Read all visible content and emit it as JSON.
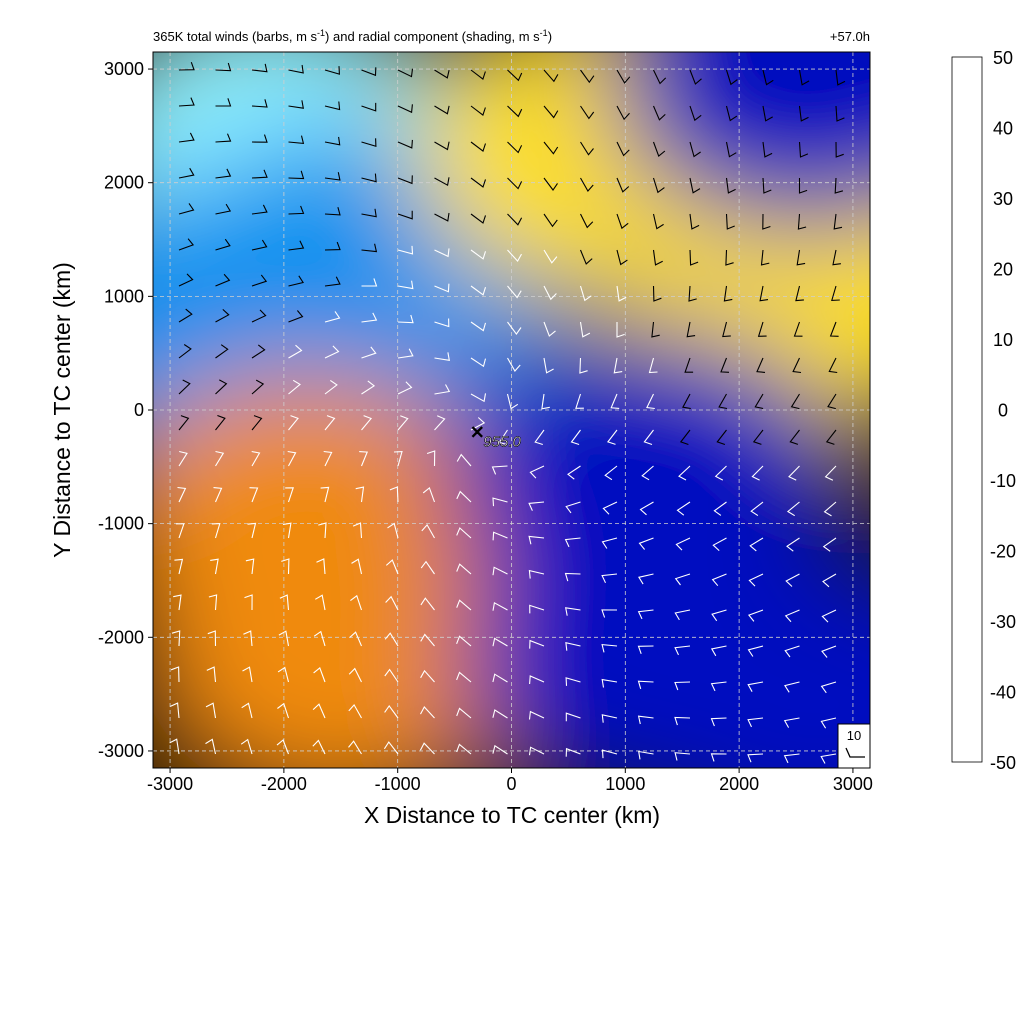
{
  "chart_data": {
    "type": "heatmap",
    "title_left": "365K total winds (barbs, m s",
    "title_unit_sup": "-1",
    "title_mid": ") and radial component (shading, m s",
    "title_end": ")",
    "title_right": "+57.0h",
    "xlabel": "X Distance to TC center (km)",
    "ylabel": "Y Distance to TC center (km)",
    "xlim": [
      -3150,
      3150
    ],
    "ylim": [
      -3150,
      3150
    ],
    "xticks": [
      -3000,
      -2000,
      -1000,
      0,
      1000,
      2000,
      3000
    ],
    "yticks": [
      -3000,
      -2000,
      -1000,
      0,
      1000,
      2000,
      3000
    ],
    "grid": true,
    "center_marker": {
      "x": -300,
      "y": -200,
      "label": "955.0"
    },
    "reference_barb": {
      "label": "10"
    },
    "colorbar": {
      "ticks": [
        50,
        40,
        30,
        20,
        10,
        0,
        -10,
        -20,
        -30,
        -40,
        -50
      ],
      "range": [
        -50,
        50
      ],
      "stops": [
        {
          "value": -50,
          "color": "#ffffff"
        },
        {
          "value": -40,
          "color": "#8ff2ff"
        },
        {
          "value": -30,
          "color": "#00e5ff"
        },
        {
          "value": -20,
          "color": "#0090f0"
        },
        {
          "value": -10,
          "color": "#0010c0"
        },
        {
          "value": 0,
          "color": "#000000"
        },
        {
          "value": 10,
          "color": "#a05000"
        },
        {
          "value": 20,
          "color": "#f08a10"
        },
        {
          "value": 30,
          "color": "#ffe000"
        },
        {
          "value": 40,
          "color": "#ffff30"
        },
        {
          "value": 50,
          "color": "#ffffff"
        }
      ]
    },
    "radial_wind_regions": [
      {
        "x": -2100,
        "y": 2300,
        "value": -45
      },
      {
        "x": -1200,
        "y": 1200,
        "value": -25
      },
      {
        "x": -2500,
        "y": 700,
        "value": -20
      },
      {
        "x": 900,
        "y": 2300,
        "value": 28
      },
      {
        "x": 2600,
        "y": 1100,
        "value": 25
      },
      {
        "x": 2600,
        "y": 2900,
        "value": -10
      },
      {
        "x": -1800,
        "y": -1000,
        "value": 18
      },
      {
        "x": -1500,
        "y": -2200,
        "value": 15
      },
      {
        "x": 1200,
        "y": -600,
        "value": -12
      },
      {
        "x": 1300,
        "y": -2200,
        "value": -12
      },
      {
        "x": 2700,
        "y": -2600,
        "value": -10
      }
    ]
  }
}
